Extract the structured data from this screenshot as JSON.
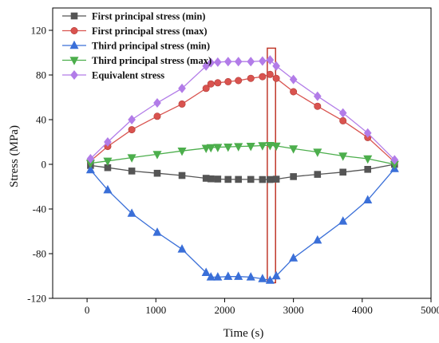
{
  "chart_data": {
    "type": "line",
    "xlabel": "Time (s)",
    "ylabel": "Stress (MPa)",
    "xlim": [
      -500,
      5000
    ],
    "ylim": [
      -120,
      140
    ],
    "xticks": [
      0,
      1000,
      2000,
      3000,
      4000,
      5000
    ],
    "yticks": [
      -120,
      -80,
      -40,
      0,
      40,
      80,
      120
    ],
    "legend_position": "top-left",
    "highlight_box": {
      "x_range": [
        2620,
        2740
      ],
      "y_range": [
        -106,
        104
      ],
      "color": "#c0392b"
    },
    "series": [
      {
        "name": "First principal stress (min)",
        "color": "#555555",
        "marker": "square",
        "x": [
          50,
          300,
          650,
          1020,
          1380,
          1730,
          1800,
          1900,
          2050,
          2200,
          2380,
          2550,
          2660,
          2750,
          3000,
          3350,
          3720,
          4080,
          4470
        ],
        "y": [
          -1,
          -3,
          -6,
          -8,
          -10,
          -12.5,
          -13,
          -13.2,
          -13.5,
          -13.5,
          -13.5,
          -13.6,
          -13.6,
          -13.3,
          -11,
          -9,
          -7,
          -4.5,
          0
        ]
      },
      {
        "name": "First principal stress (max)",
        "color": "#d9534f",
        "marker": "circle",
        "x": [
          50,
          300,
          650,
          1020,
          1380,
          1730,
          1800,
          1900,
          2050,
          2200,
          2380,
          2550,
          2660,
          2750,
          3000,
          3350,
          3720,
          4080,
          4470
        ],
        "y": [
          3,
          16,
          31,
          43,
          54,
          68,
          72,
          73,
          74,
          75,
          77,
          78.5,
          80.5,
          77,
          65,
          52,
          39,
          24,
          2
        ]
      },
      {
        "name": "Third principal stress (min)",
        "color": "#3a6fd8",
        "marker": "triangle-up",
        "x": [
          50,
          300,
          650,
          1020,
          1380,
          1730,
          1800,
          1900,
          2050,
          2200,
          2380,
          2550,
          2660,
          2750,
          3000,
          3350,
          3720,
          4080,
          4470
        ],
        "y": [
          -5,
          -23,
          -44,
          -61,
          -76,
          -97,
          -101,
          -101,
          -100.5,
          -100.5,
          -101,
          -102.5,
          -104,
          -100,
          -84,
          -68,
          -51,
          -32,
          -4
        ]
      },
      {
        "name": "Third principal stress (max)",
        "color": "#4cae4c",
        "marker": "triangle-down",
        "x": [
          50,
          300,
          650,
          1020,
          1380,
          1730,
          1800,
          1900,
          2050,
          2200,
          2380,
          2550,
          2660,
          2750,
          3000,
          3350,
          3720,
          4080,
          4470
        ],
        "y": [
          1,
          3,
          6,
          9,
          12,
          14.5,
          15,
          15.3,
          15.6,
          16,
          16.3,
          16.8,
          17,
          16.5,
          14,
          11,
          7.5,
          5,
          0
        ]
      },
      {
        "name": "Equivalent stress",
        "color": "#b27ce8",
        "marker": "diamond",
        "x": [
          50,
          300,
          650,
          1020,
          1380,
          1730,
          1800,
          1900,
          2050,
          2200,
          2380,
          2550,
          2660,
          2750,
          3000,
          3350,
          3720,
          4080,
          4470
        ],
        "y": [
          5,
          20,
          40,
          55,
          68,
          88,
          91,
          91.5,
          92,
          92,
          92,
          92.5,
          93.5,
          88,
          76,
          61,
          46,
          28,
          4
        ]
      }
    ]
  }
}
